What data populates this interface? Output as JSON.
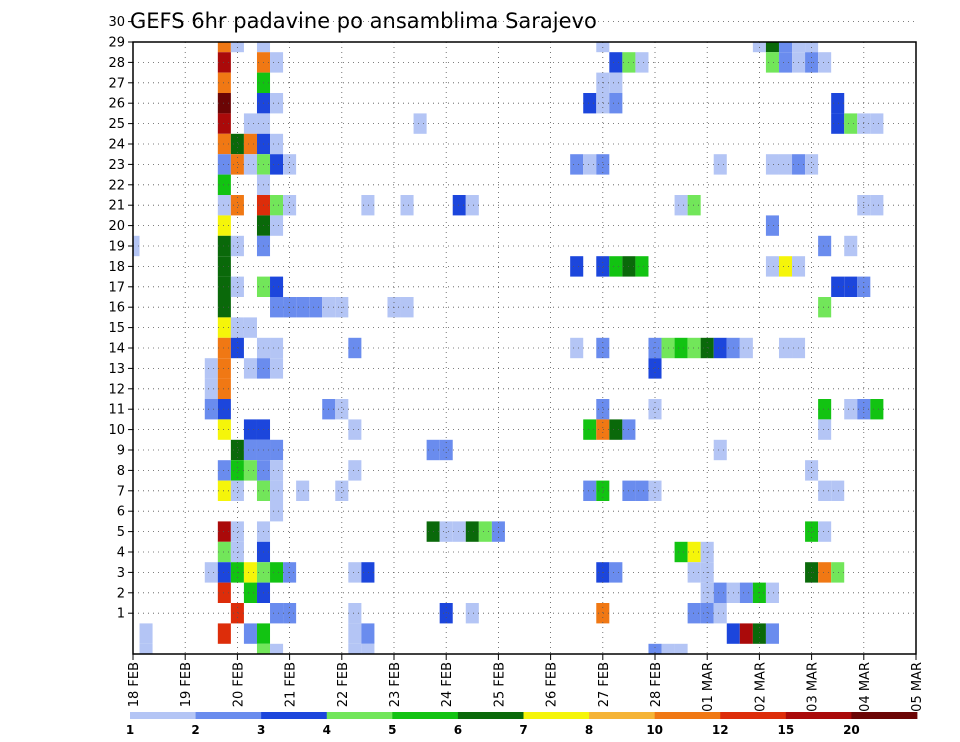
{
  "chart_data": {
    "type": "heatmap",
    "title": "GEFS 6hr padavine po ansamblima Sarajevo",
    "xlabel": "",
    "ylabel": "",
    "x_ticks": [
      "18 FEB",
      "19 FEB",
      "20 FEB",
      "21 FEB",
      "22 FEB",
      "23 FEB",
      "24 FEB",
      "25 FEB",
      "26 FEB",
      "27 FEB",
      "28 FEB",
      "01 MAR",
      "02 MAR",
      "03 MAR",
      "04 MAR",
      "05 MAR"
    ],
    "y_ticks": [
      "1",
      "2",
      "3",
      "4",
      "5",
      "6",
      "7",
      "8",
      "9",
      "10",
      "11",
      "12",
      "13",
      "14",
      "15",
      "16",
      "17",
      "18",
      "19",
      "20",
      "21",
      "22",
      "23",
      "24",
      "25",
      "26",
      "27",
      "28",
      "29",
      "30"
    ],
    "time_steps": 66,
    "members": 31,
    "grid": true,
    "legend_position": "bottom",
    "legend": {
      "labels": [
        "1",
        "2",
        "3",
        "4",
        "5",
        "6",
        "7",
        "8",
        "10",
        "12",
        "15",
        "20"
      ],
      "colors": [
        "#b4c5f5",
        "#6a8cee",
        "#1c46dc",
        "#72e65a",
        "#12c312",
        "#0a690a",
        "#f5f50a",
        "#f5b437",
        "#f07814",
        "#dd2d0a",
        "#aa0a0a",
        "#6b0505"
      ]
    },
    "cells": [
      [
        1,
        0,
        1
      ],
      [
        8,
        30,
        2
      ],
      [
        10,
        30,
        3
      ],
      [
        11,
        30,
        1
      ],
      [
        16,
        30,
        1
      ],
      [
        17,
        30,
        3
      ],
      [
        32,
        30,
        2
      ],
      [
        7,
        29,
        9
      ],
      [
        8,
        29,
        1
      ],
      [
        10,
        29,
        1
      ],
      [
        36,
        29,
        1
      ],
      [
        48,
        29,
        1
      ],
      [
        49,
        29,
        6
      ],
      [
        50,
        29,
        2
      ],
      [
        51,
        29,
        1
      ],
      [
        52,
        29,
        1
      ],
      [
        7,
        28,
        11
      ],
      [
        10,
        28,
        9
      ],
      [
        11,
        28,
        1
      ],
      [
        37,
        28,
        3
      ],
      [
        38,
        28,
        4
      ],
      [
        39,
        28,
        1
      ],
      [
        49,
        28,
        4
      ],
      [
        50,
        28,
        2
      ],
      [
        51,
        28,
        1
      ],
      [
        52,
        28,
        2
      ],
      [
        53,
        28,
        1
      ],
      [
        7,
        27,
        9
      ],
      [
        10,
        27,
        5
      ],
      [
        36,
        27,
        1
      ],
      [
        37,
        27,
        1
      ],
      [
        7,
        26,
        12
      ],
      [
        10,
        26,
        3
      ],
      [
        11,
        26,
        1
      ],
      [
        35,
        26,
        3
      ],
      [
        36,
        26,
        1
      ],
      [
        37,
        26,
        2
      ],
      [
        54,
        26,
        3
      ],
      [
        7,
        25,
        11
      ],
      [
        9,
        25,
        1
      ],
      [
        10,
        25,
        1
      ],
      [
        22,
        25,
        1
      ],
      [
        54,
        25,
        3
      ],
      [
        55,
        25,
        4
      ],
      [
        56,
        25,
        1
      ],
      [
        57,
        25,
        1
      ],
      [
        7,
        24,
        9
      ],
      [
        8,
        24,
        6
      ],
      [
        9,
        24,
        9
      ],
      [
        10,
        24,
        3
      ],
      [
        11,
        24,
        1
      ],
      [
        66,
        24,
        10
      ],
      [
        7,
        23,
        2
      ],
      [
        8,
        23,
        9
      ],
      [
        9,
        23,
        1
      ],
      [
        10,
        23,
        4
      ],
      [
        11,
        23,
        3
      ],
      [
        12,
        23,
        1
      ],
      [
        34,
        23,
        2
      ],
      [
        35,
        23,
        1
      ],
      [
        36,
        23,
        2
      ],
      [
        45,
        23,
        1
      ],
      [
        49,
        23,
        1
      ],
      [
        50,
        23,
        1
      ],
      [
        51,
        23,
        2
      ],
      [
        52,
        23,
        1
      ],
      [
        66,
        23,
        1
      ],
      [
        7,
        22,
        5
      ],
      [
        10,
        22,
        1
      ],
      [
        65,
        22,
        1
      ],
      [
        7,
        21,
        1
      ],
      [
        8,
        21,
        9
      ],
      [
        10,
        21,
        10
      ],
      [
        11,
        21,
        4
      ],
      [
        12,
        21,
        1
      ],
      [
        18,
        21,
        1
      ],
      [
        21,
        21,
        1
      ],
      [
        25,
        21,
        3
      ],
      [
        26,
        21,
        1
      ],
      [
        42,
        21,
        1
      ],
      [
        43,
        21,
        4
      ],
      [
        56,
        21,
        1
      ],
      [
        57,
        21,
        1
      ],
      [
        64,
        21,
        2
      ],
      [
        7,
        20,
        7
      ],
      [
        10,
        20,
        6
      ],
      [
        11,
        20,
        1
      ],
      [
        49,
        20,
        2
      ],
      [
        0,
        19,
        1
      ],
      [
        7,
        19,
        6
      ],
      [
        8,
        19,
        1
      ],
      [
        10,
        19,
        2
      ],
      [
        53,
        19,
        2
      ],
      [
        55,
        19,
        1
      ],
      [
        7,
        18,
        6
      ],
      [
        34,
        18,
        3
      ],
      [
        36,
        18,
        3
      ],
      [
        37,
        18,
        5
      ],
      [
        38,
        18,
        6
      ],
      [
        39,
        18,
        5
      ],
      [
        49,
        18,
        1
      ],
      [
        50,
        18,
        7
      ],
      [
        51,
        18,
        1
      ],
      [
        7,
        17,
        6
      ],
      [
        8,
        17,
        1
      ],
      [
        10,
        17,
        4
      ],
      [
        11,
        17,
        3
      ],
      [
        54,
        17,
        3
      ],
      [
        55,
        17,
        3
      ],
      [
        56,
        17,
        2
      ],
      [
        7,
        16,
        6
      ],
      [
        11,
        16,
        2
      ],
      [
        12,
        16,
        2
      ],
      [
        13,
        16,
        2
      ],
      [
        14,
        16,
        2
      ],
      [
        15,
        16,
        1
      ],
      [
        16,
        16,
        1
      ],
      [
        20,
        16,
        1
      ],
      [
        21,
        16,
        1
      ],
      [
        53,
        16,
        4
      ],
      [
        7,
        15,
        7
      ],
      [
        8,
        15,
        1
      ],
      [
        9,
        15,
        1
      ],
      [
        7,
        14,
        9
      ],
      [
        8,
        14,
        3
      ],
      [
        10,
        14,
        1
      ],
      [
        11,
        14,
        1
      ],
      [
        17,
        14,
        2
      ],
      [
        34,
        14,
        1
      ],
      [
        36,
        14,
        2
      ],
      [
        40,
        14,
        2
      ],
      [
        41,
        14,
        4
      ],
      [
        42,
        14,
        5
      ],
      [
        43,
        14,
        4
      ],
      [
        44,
        14,
        6
      ],
      [
        45,
        14,
        3
      ],
      [
        46,
        14,
        2
      ],
      [
        47,
        14,
        1
      ],
      [
        50,
        14,
        1
      ],
      [
        51,
        14,
        1
      ],
      [
        6,
        13,
        1
      ],
      [
        7,
        13,
        9
      ],
      [
        9,
        13,
        1
      ],
      [
        10,
        13,
        2
      ],
      [
        11,
        13,
        1
      ],
      [
        40,
        13,
        3
      ],
      [
        6,
        12,
        1
      ],
      [
        7,
        12,
        9
      ],
      [
        6,
        11,
        2
      ],
      [
        7,
        11,
        3
      ],
      [
        15,
        11,
        2
      ],
      [
        16,
        11,
        1
      ],
      [
        36,
        11,
        2
      ],
      [
        40,
        11,
        1
      ],
      [
        53,
        11,
        5
      ],
      [
        55,
        11,
        1
      ],
      [
        56,
        11,
        2
      ],
      [
        57,
        11,
        5
      ],
      [
        7,
        10,
        7
      ],
      [
        9,
        10,
        3
      ],
      [
        10,
        10,
        3
      ],
      [
        17,
        10,
        1
      ],
      [
        35,
        10,
        5
      ],
      [
        36,
        10,
        9
      ],
      [
        37,
        10,
        6
      ],
      [
        38,
        10,
        2
      ],
      [
        53,
        10,
        1
      ],
      [
        8,
        9,
        6
      ],
      [
        9,
        9,
        2
      ],
      [
        10,
        9,
        2
      ],
      [
        11,
        9,
        2
      ],
      [
        23,
        9,
        2
      ],
      [
        24,
        9,
        2
      ],
      [
        45,
        9,
        1
      ],
      [
        7,
        8,
        2
      ],
      [
        8,
        8,
        5
      ],
      [
        9,
        8,
        4
      ],
      [
        10,
        8,
        2
      ],
      [
        11,
        8,
        1
      ],
      [
        17,
        8,
        1
      ],
      [
        52,
        8,
        1
      ],
      [
        7,
        7,
        7
      ],
      [
        8,
        7,
        1
      ],
      [
        10,
        7,
        4
      ],
      [
        11,
        7,
        1
      ],
      [
        13,
        7,
        1
      ],
      [
        16,
        7,
        1
      ],
      [
        35,
        7,
        2
      ],
      [
        36,
        7,
        5
      ],
      [
        38,
        7,
        2
      ],
      [
        39,
        7,
        2
      ],
      [
        40,
        7,
        1
      ],
      [
        53,
        7,
        1
      ],
      [
        54,
        7,
        1
      ],
      [
        11,
        6,
        1
      ],
      [
        7,
        5,
        11
      ],
      [
        8,
        5,
        1
      ],
      [
        10,
        5,
        1
      ],
      [
        23,
        5,
        6
      ],
      [
        24,
        5,
        1
      ],
      [
        25,
        5,
        1
      ],
      [
        26,
        5,
        6
      ],
      [
        27,
        5,
        4
      ],
      [
        28,
        5,
        2
      ],
      [
        52,
        5,
        5
      ],
      [
        53,
        5,
        1
      ],
      [
        7,
        4,
        4
      ],
      [
        8,
        4,
        1
      ],
      [
        10,
        4,
        3
      ],
      [
        42,
        4,
        5
      ],
      [
        43,
        4,
        7
      ],
      [
        44,
        4,
        1
      ],
      [
        6,
        3,
        1
      ],
      [
        7,
        3,
        3
      ],
      [
        8,
        3,
        5
      ],
      [
        9,
        3,
        7
      ],
      [
        10,
        3,
        4
      ],
      [
        11,
        3,
        5
      ],
      [
        12,
        3,
        2
      ],
      [
        17,
        3,
        1
      ],
      [
        18,
        3,
        3
      ],
      [
        36,
        3,
        3
      ],
      [
        37,
        3,
        2
      ],
      [
        43,
        3,
        1
      ],
      [
        44,
        3,
        1
      ],
      [
        52,
        3,
        6
      ],
      [
        53,
        3,
        9
      ],
      [
        54,
        3,
        4
      ],
      [
        65,
        3,
        1
      ],
      [
        66,
        3,
        1
      ],
      [
        7,
        2,
        10
      ],
      [
        9,
        2,
        5
      ],
      [
        10,
        2,
        3
      ],
      [
        44,
        2,
        1
      ],
      [
        45,
        2,
        2
      ],
      [
        46,
        2,
        1
      ],
      [
        47,
        2,
        2
      ],
      [
        48,
        2,
        5
      ],
      [
        49,
        2,
        1
      ],
      [
        8,
        1,
        10
      ],
      [
        11,
        1,
        2
      ],
      [
        12,
        1,
        2
      ],
      [
        17,
        1,
        1
      ],
      [
        24,
        1,
        3
      ],
      [
        26,
        1,
        1
      ],
      [
        36,
        1,
        9
      ],
      [
        43,
        1,
        2
      ],
      [
        44,
        1,
        2
      ],
      [
        45,
        1,
        1
      ],
      [
        7,
        0,
        10
      ],
      [
        9,
        0,
        2
      ],
      [
        10,
        0,
        5
      ],
      [
        17,
        0,
        1
      ],
      [
        18,
        0,
        2
      ],
      [
        46,
        0,
        3
      ],
      [
        47,
        0,
        11
      ],
      [
        48,
        0,
        6
      ],
      [
        49,
        0,
        2
      ],
      [
        1,
        -1,
        1
      ],
      [
        10,
        -1,
        4
      ],
      [
        11,
        -1,
        1
      ],
      [
        17,
        -1,
        1
      ],
      [
        18,
        -1,
        1
      ],
      [
        40,
        -1,
        2
      ],
      [
        41,
        -1,
        1
      ],
      [
        42,
        -1,
        1
      ],
      [
        66,
        -1,
        1
      ]
    ]
  }
}
